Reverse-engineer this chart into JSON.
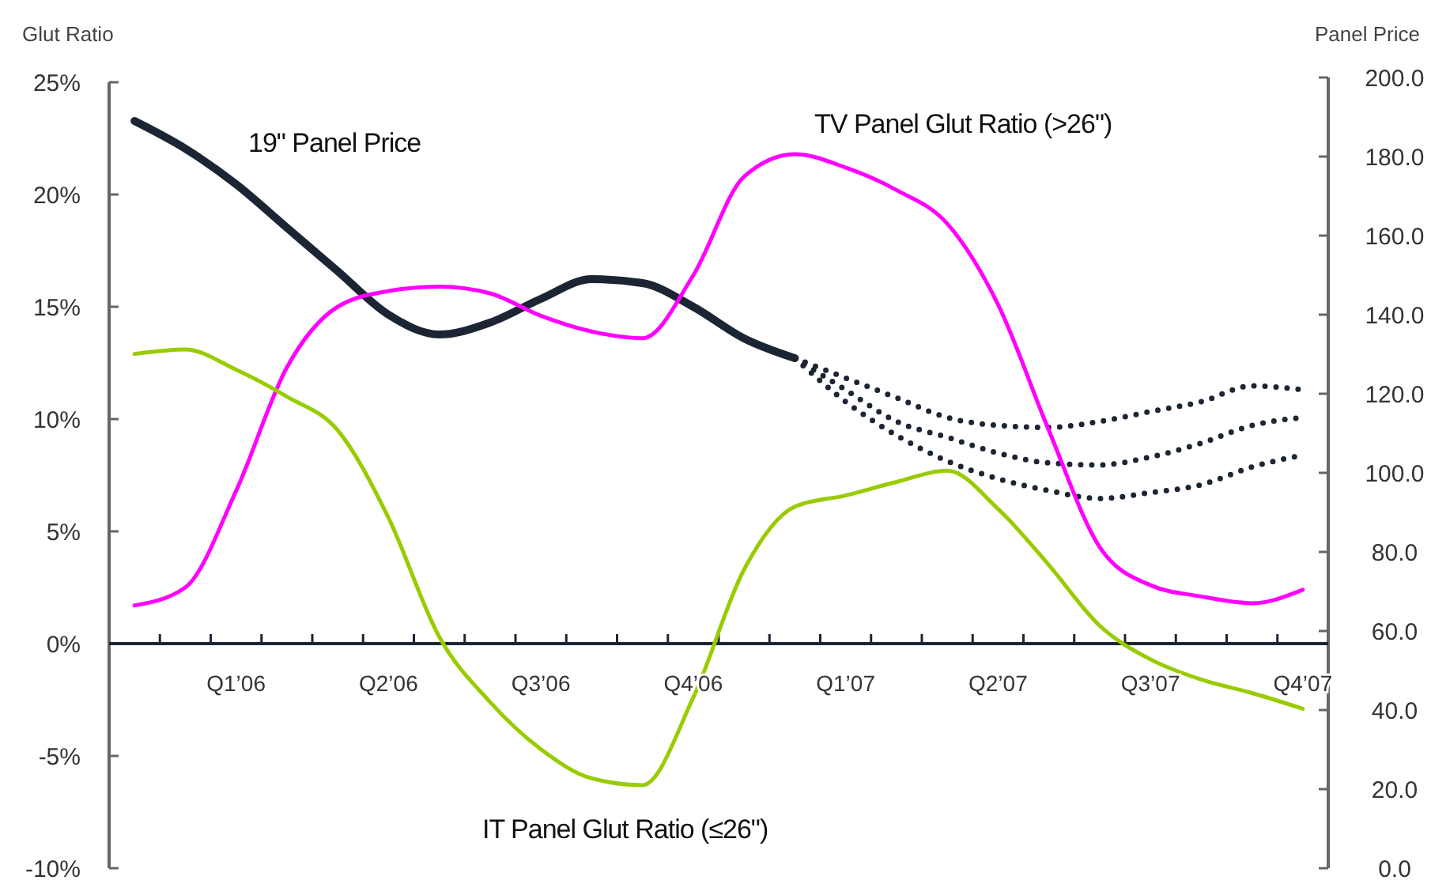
{
  "chart_data": {
    "type": "line",
    "ylabel": "Glut Ratio",
    "y2label": "Panel Price",
    "categories": [
      null,
      null,
      "Q1’06",
      null,
      null,
      "Q2’06",
      null,
      null,
      "Q3’06",
      null,
      null,
      "Q4’06",
      null,
      null,
      "Q1’07",
      null,
      null,
      "Q2’07",
      null,
      null,
      "Q3’07",
      null,
      null,
      "Q4’07"
    ],
    "ylim": [
      -10,
      25
    ],
    "yticks": [
      {
        "value": 25,
        "label": "25%"
      },
      {
        "value": 20,
        "label": "20%"
      },
      {
        "value": 15,
        "label": "15%"
      },
      {
        "value": 10,
        "label": "10%"
      },
      {
        "value": 5,
        "label": "5%"
      },
      {
        "value": 0,
        "label": "0%"
      },
      {
        "value": -5,
        "label": "-5%"
      },
      {
        "value": -10,
        "label": "-10%"
      }
    ],
    "y2lim": [
      0,
      200
    ],
    "y2ticks": [
      {
        "value": 200,
        "label": "200.0"
      },
      {
        "value": 180,
        "label": "180.0"
      },
      {
        "value": 160,
        "label": "160.0"
      },
      {
        "value": 140,
        "label": "140.0"
      },
      {
        "value": 120,
        "label": "120.0"
      },
      {
        "value": 100,
        "label": "100.0"
      },
      {
        "value": 80,
        "label": "80.0"
      },
      {
        "value": 60,
        "label": "60.0"
      },
      {
        "value": 40,
        "label": "40.0"
      },
      {
        "value": 20,
        "label": "20.0"
      },
      {
        "value": 0,
        "label": "0.0"
      }
    ],
    "line_style": "solid",
    "series": [
      {
        "name": "19\" Panel Price",
        "color": "#1c2533",
        "axis": "y2",
        "values": [
          189,
          182,
          173,
          162,
          151,
          140,
          135,
          138,
          144,
          149,
          148,
          142,
          134,
          129,
          null,
          null,
          null,
          null,
          null,
          null,
          null,
          null,
          null,
          null
        ]
      },
      {
        "color": "#1c2533",
        "axis": "y2",
        "line_style": "dotted",
        "values": [
          null,
          null,
          null,
          null,
          null,
          null,
          null,
          null,
          null,
          null,
          null,
          null,
          null,
          129,
          124,
          119,
          114,
          112,
          111.5,
          113,
          115.5,
          118,
          122,
          121
        ]
      },
      {
        "color": "#1c2533",
        "axis": "y2",
        "line_style": "dotted",
        "values": [
          null,
          null,
          null,
          null,
          null,
          null,
          null,
          null,
          null,
          null,
          null,
          null,
          null,
          129,
          121,
          113,
          109,
          105,
          102.5,
          102,
          104,
          107.5,
          112,
          114
        ]
      },
      {
        "color": "#1c2533",
        "axis": "y2",
        "line_style": "dotted",
        "values": [
          null,
          null,
          null,
          null,
          null,
          null,
          null,
          null,
          null,
          null,
          null,
          null,
          null,
          129,
          118,
          109.5,
          103,
          98.5,
          95.5,
          93.5,
          95,
          97,
          101.5,
          104.5
        ]
      },
      {
        "name": "TV Panel Glut Ratio (>26\")",
        "color": "#ff00ff",
        "values": [
          1.7,
          2.5,
          6.8,
          12.3,
          15.0,
          15.7,
          15.9,
          15.6,
          14.6,
          13.9,
          13.6,
          16.4,
          20.8,
          21.8,
          21.2,
          20.2,
          18.7,
          15.1,
          9.5,
          4.3,
          2.6,
          2.1,
          1.8,
          2.4
        ]
      },
      {
        "name": "IT Panel Glut Ratio (≤26\")",
        "color": "#99cc00",
        "values": [
          12.9,
          13.1,
          12.2,
          11.0,
          9.5,
          5.6,
          0.3,
          -2.6,
          -4.7,
          -6.0,
          -6.3,
          -2.4,
          3.3,
          6.1,
          6.6,
          7.2,
          7.7,
          6.0,
          3.5,
          0.8,
          -0.7,
          -1.6,
          -2.2,
          -2.9
        ]
      }
    ]
  }
}
